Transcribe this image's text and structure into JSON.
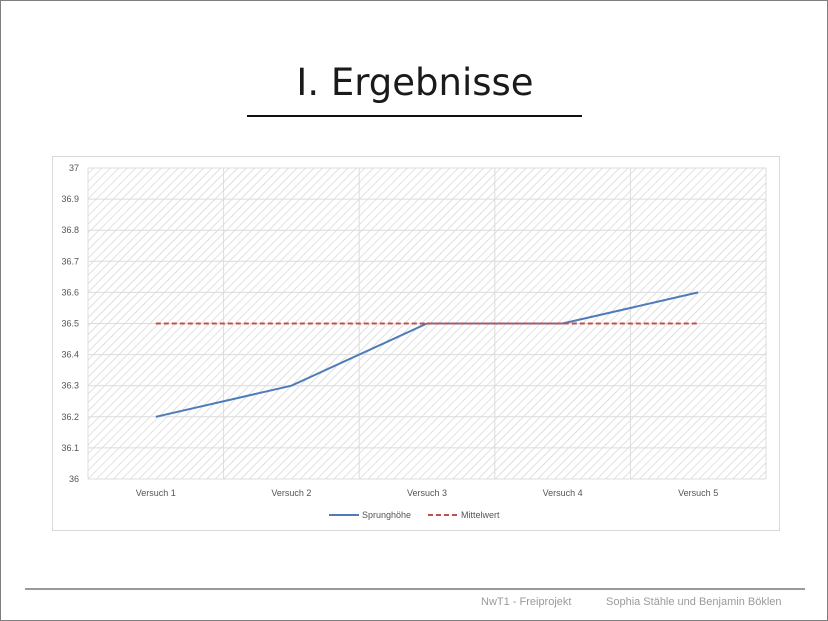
{
  "slide": {
    "title": "I. Ergebnisse",
    "footer_left": "NwT1 - Freiprojekt",
    "footer_right": "Sophia Stähle und Benjamin Böklen"
  },
  "chart_data": {
    "type": "line",
    "categories": [
      "Versuch 1",
      "Versuch 2",
      "Versuch 3",
      "Versuch 4",
      "Versuch 5"
    ],
    "series": [
      {
        "name": "Sprunghöhe",
        "values": [
          36.2,
          36.3,
          36.5,
          36.5,
          36.6
        ],
        "color": "#4f7cb8",
        "style": "solid"
      },
      {
        "name": "Mittelwert",
        "values": [
          36.5,
          36.5,
          36.5,
          36.5,
          36.5
        ],
        "color": "#c0504d",
        "style": "dashed"
      }
    ],
    "ylim": [
      36,
      37
    ],
    "yticks": [
      "36",
      "36.1",
      "36.2",
      "36.3",
      "36.4",
      "36.5",
      "36.6",
      "36.7",
      "36.8",
      "36.9",
      "37"
    ],
    "grid": true,
    "legend": "bottom"
  }
}
